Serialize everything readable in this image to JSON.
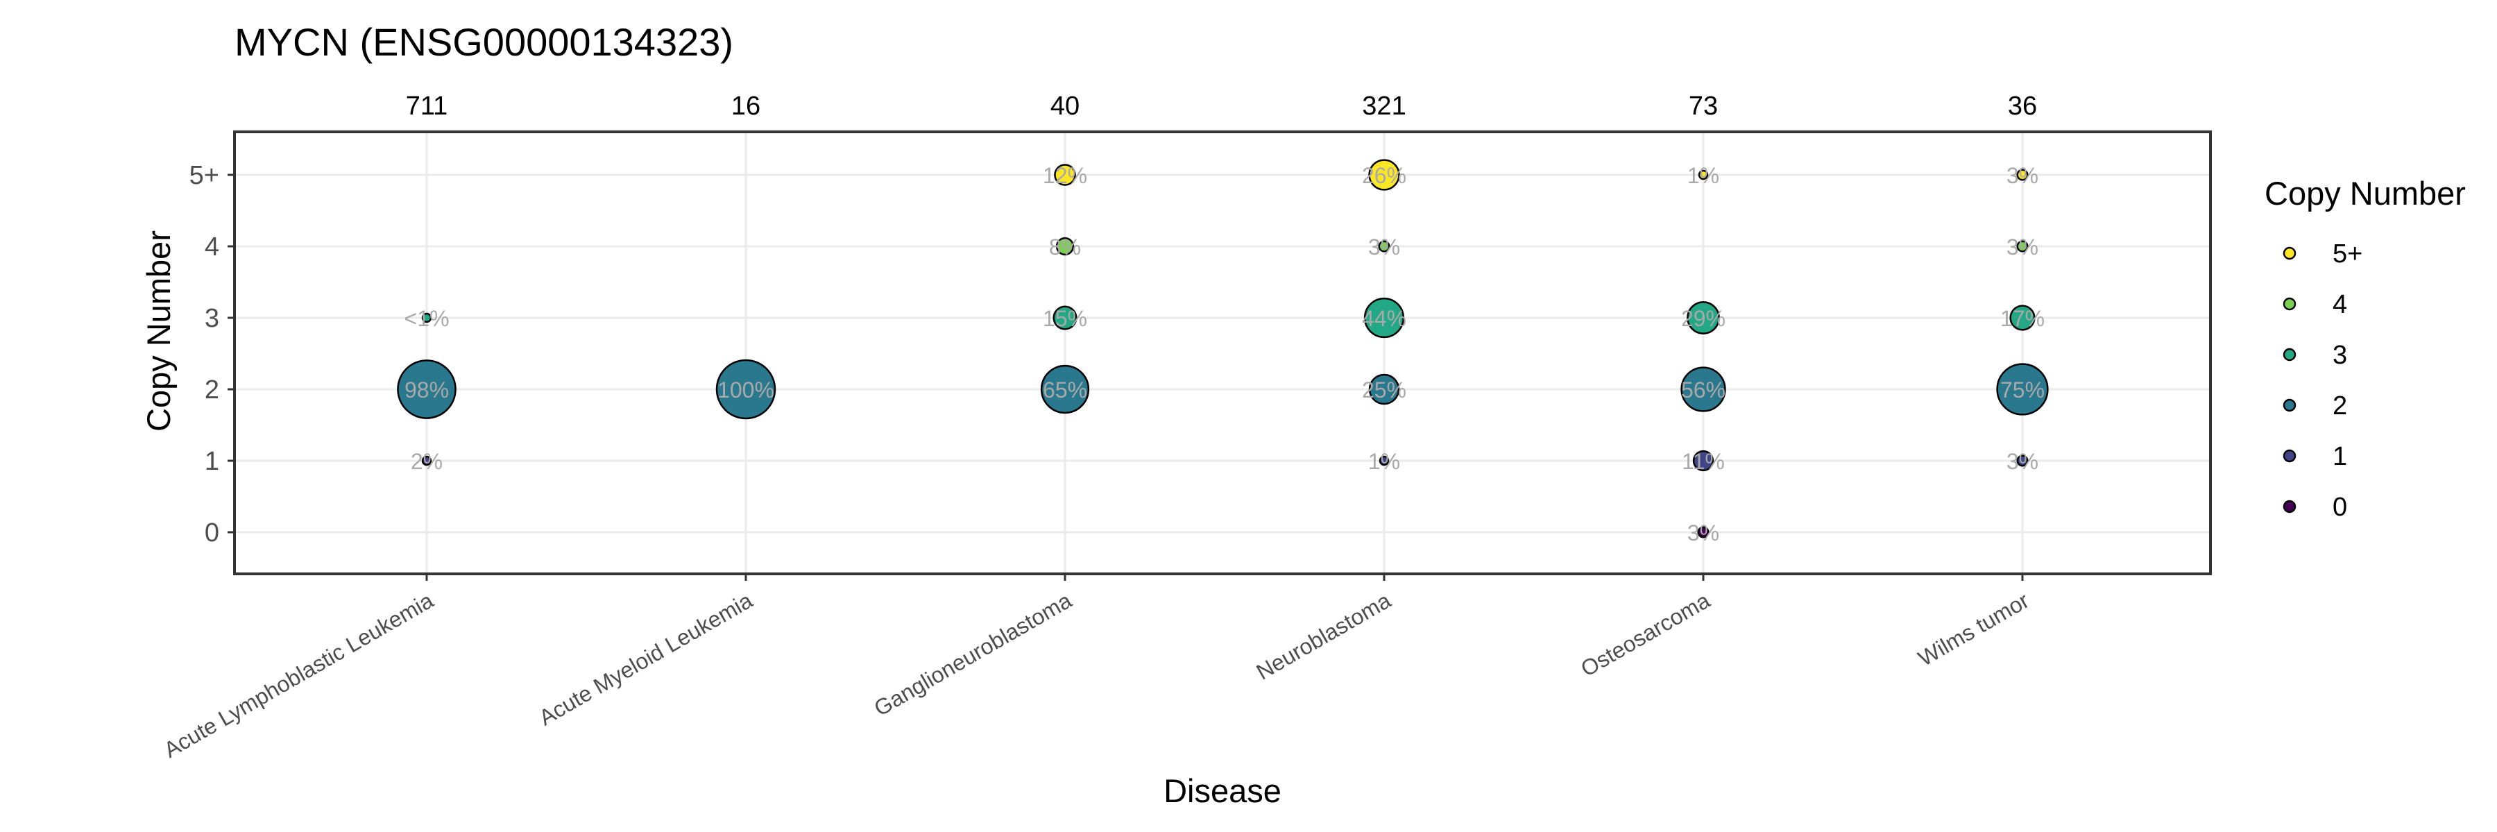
{
  "chart_data": {
    "type": "scatter",
    "title": "MYCN (ENSG00000134323)",
    "xlabel": "Disease",
    "ylabel": "Copy Number",
    "categories": [
      "Acute Lymphoblastic Leukemia",
      "Acute Myeloid Leukemia",
      "Ganglioneuroblastoma",
      "Neuroblastoma",
      "Osteosarcoma",
      "Wilms tumor"
    ],
    "counts": [
      "711",
      "16",
      "40",
      "321",
      "73",
      "36"
    ],
    "y_levels": [
      "0",
      "1",
      "2",
      "3",
      "4",
      "5+"
    ],
    "grid": true,
    "legend": {
      "title": "Copy Number",
      "placement": "right",
      "entries": [
        "5+",
        "4",
        "3",
        "2",
        "1",
        "0"
      ]
    },
    "colors": {
      "0": "#440154",
      "1": "#414487",
      "2": "#2A788E",
      "3": "#22A884",
      "4": "#7AD151",
      "5+": "#FDE725"
    },
    "points": [
      {
        "disease": "Acute Lymphoblastic Leukemia",
        "copy_number": "3",
        "percent": 0.3,
        "label": "<1%"
      },
      {
        "disease": "Acute Lymphoblastic Leukemia",
        "copy_number": "2",
        "percent": 98,
        "label": "98%"
      },
      {
        "disease": "Acute Lymphoblastic Leukemia",
        "copy_number": "1",
        "percent": 2,
        "label": "2%"
      },
      {
        "disease": "Acute Myeloid Leukemia",
        "copy_number": "2",
        "percent": 100,
        "label": "100%"
      },
      {
        "disease": "Ganglioneuroblastoma",
        "copy_number": "5+",
        "percent": 12,
        "label": "12%"
      },
      {
        "disease": "Ganglioneuroblastoma",
        "copy_number": "4",
        "percent": 8,
        "label": "8%"
      },
      {
        "disease": "Ganglioneuroblastoma",
        "copy_number": "3",
        "percent": 15,
        "label": "15%"
      },
      {
        "disease": "Ganglioneuroblastoma",
        "copy_number": "2",
        "percent": 65,
        "label": "65%"
      },
      {
        "disease": "Neuroblastoma",
        "copy_number": "5+",
        "percent": 26,
        "label": "26%"
      },
      {
        "disease": "Neuroblastoma",
        "copy_number": "4",
        "percent": 3,
        "label": "3%"
      },
      {
        "disease": "Neuroblastoma",
        "copy_number": "3",
        "percent": 44,
        "label": "44%"
      },
      {
        "disease": "Neuroblastoma",
        "copy_number": "2",
        "percent": 25,
        "label": "25%"
      },
      {
        "disease": "Neuroblastoma",
        "copy_number": "1",
        "percent": 1,
        "label": "1%"
      },
      {
        "disease": "Osteosarcoma",
        "copy_number": "5+",
        "percent": 1,
        "label": "1%"
      },
      {
        "disease": "Osteosarcoma",
        "copy_number": "3",
        "percent": 29,
        "label": "29%"
      },
      {
        "disease": "Osteosarcoma",
        "copy_number": "2",
        "percent": 56,
        "label": "56%"
      },
      {
        "disease": "Osteosarcoma",
        "copy_number": "1",
        "percent": 11,
        "label": "11%"
      },
      {
        "disease": "Osteosarcoma",
        "copy_number": "0",
        "percent": 3,
        "label": "3%"
      },
      {
        "disease": "Wilms tumor",
        "copy_number": "5+",
        "percent": 3,
        "label": "3%"
      },
      {
        "disease": "Wilms tumor",
        "copy_number": "4",
        "percent": 3,
        "label": "3%"
      },
      {
        "disease": "Wilms tumor",
        "copy_number": "3",
        "percent": 17,
        "label": "17%"
      },
      {
        "disease": "Wilms tumor",
        "copy_number": "2",
        "percent": 75,
        "label": "75%"
      },
      {
        "disease": "Wilms tumor",
        "copy_number": "1",
        "percent": 3,
        "label": "3%"
      }
    ]
  }
}
